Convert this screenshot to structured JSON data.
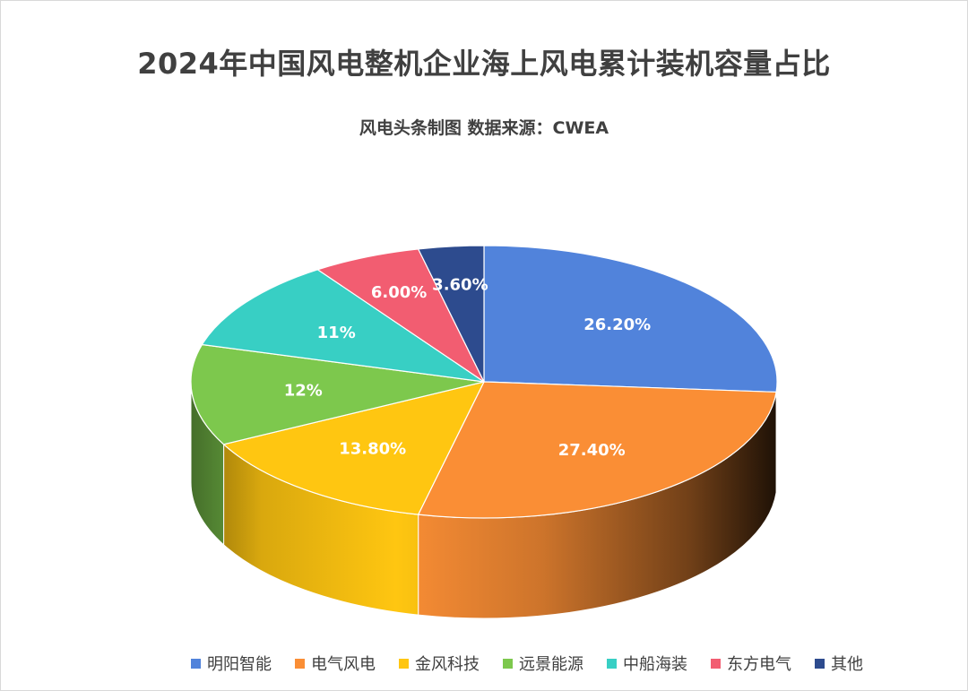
{
  "chart_data": {
    "type": "pie",
    "title": "2024年中国风电整机企业海上风电累计装机容量占比",
    "subtitle": "风电头条制图  数据来源：CWEA",
    "legend_position": "bottom",
    "series": [
      {
        "name": "明阳智能",
        "value": 26.2,
        "label": "26.20%",
        "color": "#5183DB"
      },
      {
        "name": "电气风电",
        "value": 27.4,
        "label": "27.40%",
        "color": "#FA8E35"
      },
      {
        "name": "金风科技",
        "value": 13.8,
        "label": "13.80%",
        "color": "#FFC611"
      },
      {
        "name": "远景能源",
        "value": 12,
        "label": "12%",
        "color": "#7DC84D"
      },
      {
        "name": "中船海装",
        "value": 11,
        "label": "11%",
        "color": "#38CFC4"
      },
      {
        "name": "东方电气",
        "value": 6,
        "label": "6.00%",
        "color": "#F25D71"
      },
      {
        "name": "其他",
        "value": 3.6,
        "label": "3.60%",
        "color": "#2D4B8E"
      }
    ]
  }
}
